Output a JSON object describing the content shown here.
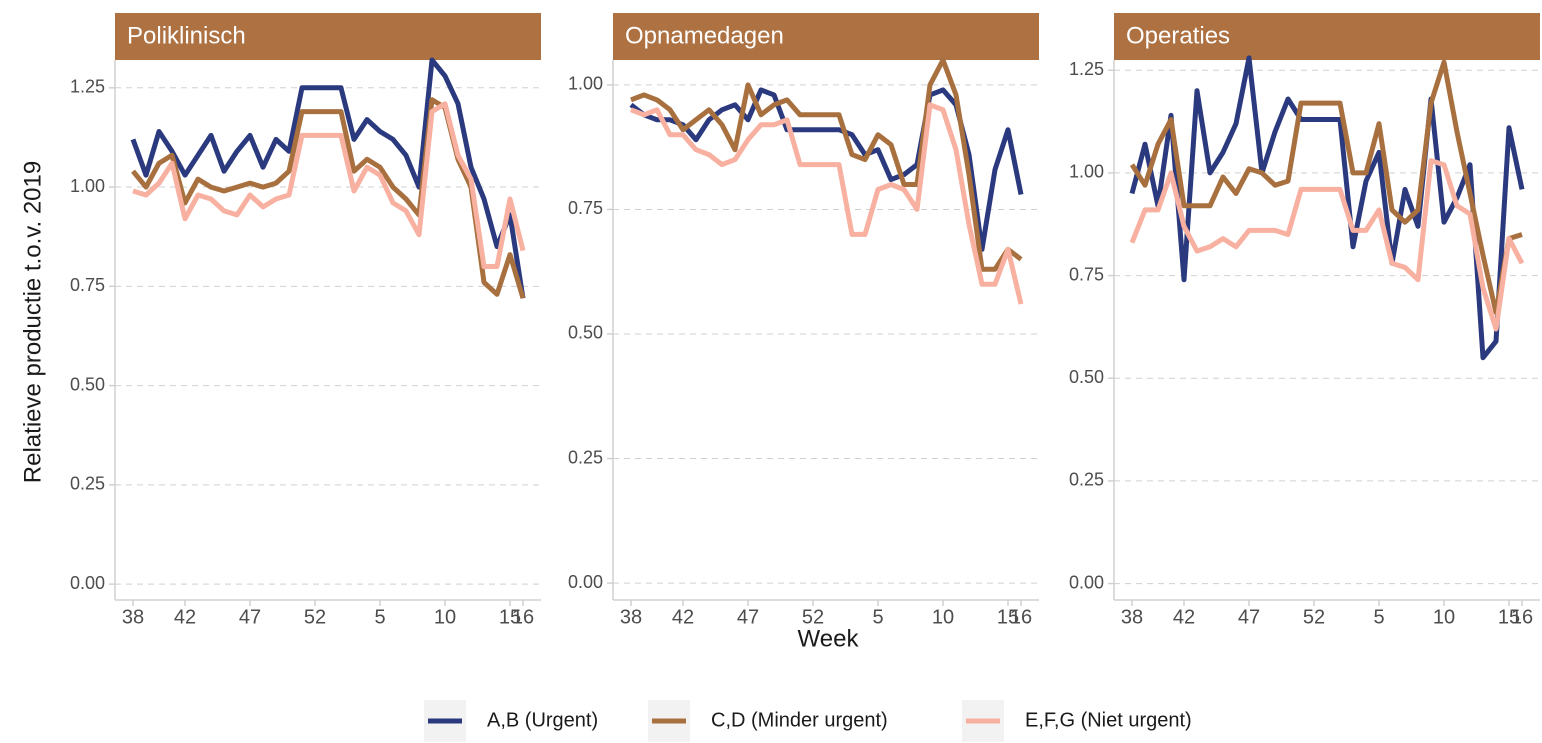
{
  "chart_data": [
    {
      "type": "line",
      "title": "Poliklinisch",
      "ylabel": "Relatieve productie t.o.v. 2019",
      "categories": [
        "38",
        null,
        null,
        null,
        "42",
        null,
        null,
        null,
        null,
        "47",
        null,
        null,
        null,
        null,
        "52",
        null,
        null,
        null,
        null,
        "5",
        null,
        null,
        null,
        null,
        "10",
        null,
        null,
        null,
        null,
        "15",
        "16"
      ],
      "ylim": [
        -0.04,
        1.32
      ],
      "yticks": [
        {
          "value": 0,
          "label": "0.00"
        },
        {
          "value": 0.25,
          "label": "0.25"
        },
        {
          "value": 0.5,
          "label": "0.50"
        },
        {
          "value": 0.75,
          "label": "0.75"
        },
        {
          "value": 1,
          "label": "1.00"
        },
        {
          "value": 1.25,
          "label": "1.25"
        }
      ],
      "grid": true,
      "series": [
        {
          "name": "A,B (Urgent)",
          "color": "#2b3a7e",
          "values": [
            1.12,
            1.03,
            1.14,
            1.09,
            1.03,
            1.08,
            1.13,
            1.04,
            1.09,
            1.13,
            1.05,
            1.12,
            1.09,
            1.25,
            1.25,
            1.25,
            1.25,
            1.12,
            1.17,
            1.14,
            1.12,
            1.08,
            1.0,
            1.32,
            1.28,
            1.21,
            1.05,
            0.97,
            0.85,
            0.93,
            0.72
          ]
        },
        {
          "name": "C,D (Minder urgent)",
          "color": "#a8703f",
          "values": [
            1.04,
            1.0,
            1.06,
            1.08,
            0.96,
            1.02,
            1.0,
            0.99,
            1.0,
            1.01,
            1.0,
            1.01,
            1.04,
            1.19,
            1.19,
            1.19,
            1.19,
            1.04,
            1.07,
            1.05,
            1.0,
            0.97,
            0.93,
            1.22,
            1.2,
            1.07,
            1.0,
            0.76,
            0.73,
            0.83,
            0.72
          ]
        },
        {
          "name": "E,F,G (Niet urgent)",
          "color": "#f8b0a0",
          "values": [
            0.99,
            0.98,
            1.01,
            1.06,
            0.92,
            0.98,
            0.97,
            0.94,
            0.93,
            0.98,
            0.95,
            0.97,
            0.98,
            1.13,
            1.13,
            1.13,
            1.13,
            0.99,
            1.05,
            1.03,
            0.96,
            0.94,
            0.88,
            1.19,
            1.21,
            1.08,
            1.02,
            0.8,
            0.8,
            0.97,
            0.84
          ]
        }
      ]
    },
    {
      "type": "line",
      "title": "Opnamedagen",
      "xlabel": "Week",
      "categories": [
        "38",
        null,
        null,
        null,
        "42",
        null,
        null,
        null,
        null,
        "47",
        null,
        null,
        null,
        null,
        "52",
        null,
        null,
        null,
        null,
        "5",
        null,
        null,
        null,
        null,
        "10",
        null,
        null,
        null,
        null,
        "15",
        "16"
      ],
      "ylim": [
        -0.034,
        1.05
      ],
      "yticks": [
        {
          "value": 0,
          "label": "0.00"
        },
        {
          "value": 0.25,
          "label": "0.25"
        },
        {
          "value": 0.5,
          "label": "0.50"
        },
        {
          "value": 0.75,
          "label": "0.75"
        },
        {
          "value": 1,
          "label": "1.00"
        }
      ],
      "grid": true,
      "series": [
        {
          "color": "#2b3a7e",
          "values": [
            0.96,
            0.94,
            0.93,
            0.93,
            0.92,
            0.89,
            0.93,
            0.95,
            0.96,
            0.93,
            0.99,
            0.98,
            0.91,
            0.91,
            0.91,
            0.91,
            0.91,
            0.9,
            0.86,
            0.87,
            0.81,
            0.82,
            0.84,
            0.98,
            0.99,
            0.96,
            0.86,
            0.67,
            0.83,
            0.91,
            0.78
          ]
        },
        {
          "color": "#a8703f",
          "values": [
            0.97,
            0.98,
            0.97,
            0.95,
            0.91,
            0.93,
            0.95,
            0.92,
            0.87,
            1.0,
            0.94,
            0.96,
            0.97,
            0.94,
            0.94,
            0.94,
            0.94,
            0.86,
            0.85,
            0.9,
            0.88,
            0.8,
            0.8,
            1.0,
            1.05,
            0.98,
            0.82,
            0.63,
            0.63,
            0.67,
            0.65
          ]
        },
        {
          "color": "#f8b0a0",
          "values": [
            0.95,
            0.94,
            0.95,
            0.9,
            0.9,
            0.87,
            0.86,
            0.84,
            0.85,
            0.89,
            0.92,
            0.92,
            0.93,
            0.84,
            0.84,
            0.84,
            0.84,
            0.7,
            0.7,
            0.79,
            0.8,
            0.79,
            0.75,
            0.96,
            0.95,
            0.87,
            0.72,
            0.6,
            0.6,
            0.67,
            0.56
          ]
        }
      ]
    },
    {
      "type": "line",
      "title": "Operaties",
      "categories": [
        "38",
        null,
        null,
        null,
        "42",
        null,
        null,
        null,
        null,
        "47",
        null,
        null,
        null,
        null,
        "52",
        null,
        null,
        null,
        null,
        "5",
        null,
        null,
        null,
        null,
        "10",
        null,
        null,
        null,
        null,
        "15",
        "16"
      ],
      "ylim": [
        -0.04,
        1.275
      ],
      "yticks": [
        {
          "value": 0,
          "label": "0.00"
        },
        {
          "value": 0.25,
          "label": "0.25"
        },
        {
          "value": 0.5,
          "label": "0.50"
        },
        {
          "value": 0.75,
          "label": "0.75"
        },
        {
          "value": 1,
          "label": "1.00"
        },
        {
          "value": 1.25,
          "label": "1.25"
        }
      ],
      "grid": true,
      "series": [
        {
          "color": "#2b3a7e",
          "values": [
            0.95,
            1.07,
            0.92,
            1.14,
            0.74,
            1.2,
            1.0,
            1.05,
            1.12,
            1.28,
            1.0,
            1.1,
            1.18,
            1.13,
            1.13,
            1.13,
            1.13,
            0.82,
            0.98,
            1.05,
            0.78,
            0.96,
            0.87,
            1.18,
            0.88,
            0.94,
            1.02,
            0.55,
            0.59,
            1.11,
            0.96
          ]
        },
        {
          "color": "#a8703f",
          "values": [
            1.02,
            0.97,
            1.07,
            1.13,
            0.92,
            0.92,
            0.92,
            0.99,
            0.95,
            1.01,
            1.0,
            0.97,
            0.98,
            1.17,
            1.17,
            1.17,
            1.17,
            1.0,
            1.0,
            1.12,
            0.91,
            0.88,
            0.91,
            1.17,
            1.27,
            1.1,
            0.95,
            0.8,
            0.66,
            0.84,
            0.85
          ]
        },
        {
          "color": "#f8b0a0",
          "values": [
            0.83,
            0.91,
            0.91,
            1.0,
            0.87,
            0.81,
            0.82,
            0.84,
            0.82,
            0.86,
            0.86,
            0.86,
            0.85,
            0.96,
            0.96,
            0.96,
            0.96,
            0.86,
            0.86,
            0.91,
            0.78,
            0.77,
            0.74,
            1.03,
            1.02,
            0.92,
            0.9,
            0.72,
            0.62,
            0.84,
            0.78
          ]
        }
      ]
    }
  ]
}
